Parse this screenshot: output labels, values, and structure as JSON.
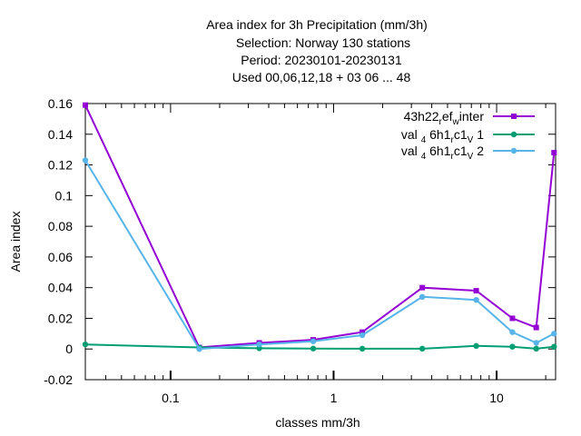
{
  "chart_data": {
    "type": "line",
    "title_lines": [
      "Area index  for 3h Precipitation (mm/3h)",
      "Selection: Norway    130 stations",
      "Period: 20230101-20230131",
      "Used  00,06,12,18  + 03 06 ... 48"
    ],
    "xlabel": "classes mm/3h",
    "ylabel": "Area index",
    "xscale": "log",
    "xlim": [
      0.03,
      23
    ],
    "ylim": [
      -0.02,
      0.16
    ],
    "yticks": [
      -0.02,
      0,
      0.02,
      0.04,
      0.06,
      0.08,
      0.1,
      0.12,
      0.14,
      0.16
    ],
    "ytick_labels": [
      "-0.02",
      "0",
      "0.02",
      "0.04",
      "0.06",
      "0.08",
      "0.1",
      "0.12",
      "0.14",
      "0.16"
    ],
    "xticks": [
      0.1,
      1,
      10
    ],
    "xtick_labels": [
      "0.1",
      "1",
      "10"
    ],
    "legend_position": "top-right",
    "x": [
      0.03,
      0.15,
      0.35,
      0.75,
      1.5,
      3.5,
      7.5,
      12.5,
      17.5,
      22.5
    ],
    "series": [
      {
        "name_parts": [
          "43h22",
          "r",
          "ef",
          "w",
          "inter"
        ],
        "color": "#9400d3",
        "marker": "square",
        "values": [
          0.159,
          0.001,
          0.004,
          0.006,
          0.011,
          0.04,
          0.038,
          0.02,
          0.014,
          0.128
        ]
      },
      {
        "name_parts": [
          "val",
          "4",
          "6h1",
          "r",
          "c1",
          "V",
          "1"
        ],
        "color": "#009e73",
        "marker": "circle",
        "values": [
          0.003,
          0.001,
          0.0005,
          0.0003,
          0.0002,
          0.0002,
          0.002,
          0.0015,
          0.0002,
          0.0015
        ]
      },
      {
        "name_parts": [
          "val",
          "4",
          "6h1",
          "r",
          "c1",
          "V",
          "2"
        ],
        "color": "#56b4e9",
        "marker": "circle",
        "values": [
          0.123,
          0.0,
          0.003,
          0.005,
          0.009,
          0.034,
          0.032,
          0.011,
          0.004,
          0.01
        ]
      }
    ]
  }
}
